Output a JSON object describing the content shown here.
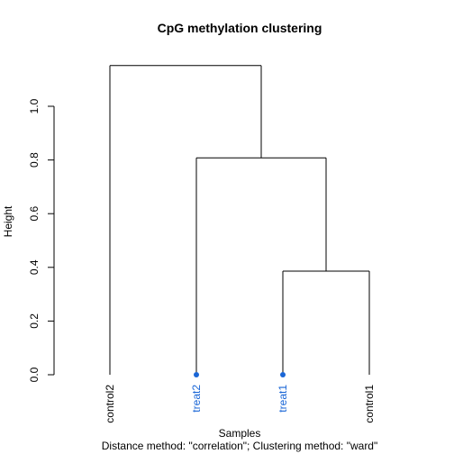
{
  "chart_data": {
    "type": "dendrogram",
    "title": "CpG methylation clustering",
    "xlabel": "Samples",
    "ylabel": "Height",
    "subtitle": "Distance method: \"correlation\"; Clustering method: \"ward\"",
    "ylim": [
      0,
      1.15
    ],
    "yticks": [
      0.0,
      0.2,
      0.4,
      0.6,
      0.8,
      1.0
    ],
    "ytick_labels": [
      "0.0",
      "0.2",
      "0.4",
      "0.6",
      "0.8",
      "1.0"
    ],
    "leaves": [
      {
        "label": "control2",
        "group": "control",
        "color": "#000000",
        "marker": false
      },
      {
        "label": "treat2",
        "group": "treat",
        "color": "#1a66d6",
        "marker": true
      },
      {
        "label": "treat1",
        "group": "treat",
        "color": "#1a66d6",
        "marker": true
      },
      {
        "label": "control1",
        "group": "control",
        "color": "#000000",
        "marker": false
      }
    ],
    "merges": [
      {
        "left": "treat1",
        "right": "control1",
        "height": 0.386
      },
      {
        "left": "treat2",
        "right": "node1",
        "height": 0.808
      },
      {
        "left": "control2",
        "right": "node2",
        "height": 1.152
      }
    ],
    "colors": {
      "treat": "#1a66d6",
      "control": "#000000",
      "branch": "#000000"
    }
  }
}
